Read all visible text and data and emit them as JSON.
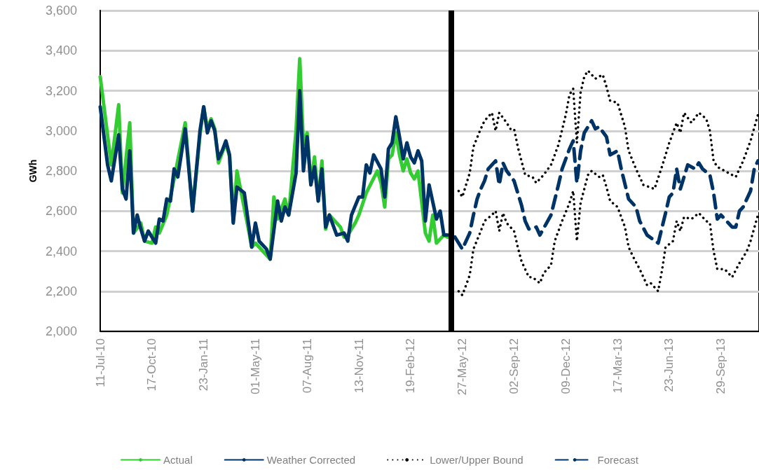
{
  "chart_data": {
    "type": "line",
    "ylabel": "GWh",
    "ylim": [
      2000,
      3600
    ],
    "yticks": [
      {
        "value": 2000,
        "label": "2,000"
      },
      {
        "value": 2200,
        "label": "2,200"
      },
      {
        "value": 2400,
        "label": "2,400"
      },
      {
        "value": 2600,
        "label": "2,600"
      },
      {
        "value": 2800,
        "label": "2,800"
      },
      {
        "value": 3000,
        "label": "3,000"
      },
      {
        "value": 3200,
        "label": "3,200"
      },
      {
        "value": 3400,
        "label": "3,400"
      },
      {
        "value": 3600,
        "label": "3,600"
      }
    ],
    "xlim": [
      "2010-07-11",
      "2013-12-10"
    ],
    "xticks": [
      {
        "value": "2010-07-11",
        "label": "11-Jul-10"
      },
      {
        "value": "2010-10-17",
        "label": "17-Oct-10"
      },
      {
        "value": "2011-01-23",
        "label": "23-Jan-11"
      },
      {
        "value": "2011-05-01",
        "label": "01-May-11"
      },
      {
        "value": "2011-08-07",
        "label": "07-Aug-11"
      },
      {
        "value": "2011-11-13",
        "label": "13-Nov-11"
      },
      {
        "value": "2012-02-19",
        "label": "19-Feb-12"
      },
      {
        "value": "2012-05-27",
        "label": "27-May-12"
      },
      {
        "value": "2012-09-02",
        "label": "02-Sep-12"
      },
      {
        "value": "2012-12-09",
        "label": "09-Dec-12"
      },
      {
        "value": "2013-03-17",
        "label": "17-Mar-13"
      },
      {
        "value": "2013-06-23",
        "label": "23-Jun-13"
      },
      {
        "value": "2013-09-29",
        "label": "29-Sep-13"
      }
    ],
    "grid": "y",
    "legend": "bottom",
    "marker": "none",
    "ref_lines": [
      {
        "axis": "x",
        "value": "2012-05-06",
        "color": "#000000"
      }
    ],
    "series": [
      {
        "name": "Actual",
        "color": "#33cc33",
        "line_style": "solid",
        "x": [
          "2010-07-11",
          "2010-08-01",
          "2010-08-15",
          "2010-08-22",
          "2010-09-05",
          "2010-09-12",
          "2010-09-26",
          "2010-10-03",
          "2010-10-17",
          "2010-10-24",
          "2010-10-31",
          "2010-11-14",
          "2010-11-28",
          "2010-12-19",
          "2011-01-02",
          "2011-01-16",
          "2011-01-23",
          "2011-01-30",
          "2011-02-06",
          "2011-02-13",
          "2011-02-20",
          "2011-03-06",
          "2011-03-13",
          "2011-03-20",
          "2011-03-27",
          "2011-04-17",
          "2011-04-24",
          "2011-05-01",
          "2011-05-15",
          "2011-05-29",
          "2011-06-05",
          "2011-06-12",
          "2011-06-26",
          "2011-07-03",
          "2011-07-17",
          "2011-07-24",
          "2011-07-31",
          "2011-08-07",
          "2011-08-14",
          "2011-08-21",
          "2011-08-28",
          "2011-09-04",
          "2011-09-11",
          "2011-09-18",
          "2011-10-09",
          "2011-10-16",
          "2011-10-23",
          "2011-11-06",
          "2011-11-13",
          "2011-11-27",
          "2011-12-18",
          "2011-12-25",
          "2012-01-01",
          "2012-01-08",
          "2012-01-15",
          "2012-01-22",
          "2012-01-29",
          "2012-02-05",
          "2012-02-12",
          "2012-02-19",
          "2012-02-26",
          "2012-03-04",
          "2012-03-18",
          "2012-03-25",
          "2012-04-01",
          "2012-04-08",
          "2012-04-22",
          "2012-04-29"
        ],
        "values": [
          3270,
          2830,
          3130,
          2690,
          3040,
          2490,
          2540,
          2450,
          2440,
          2520,
          2490,
          2580,
          2760,
          3040,
          2600,
          2980,
          3120,
          3010,
          3060,
          3010,
          2840,
          2940,
          2870,
          2550,
          2800,
          2520,
          2420,
          2440,
          2400,
          2360,
          2670,
          2560,
          2660,
          2580,
          3000,
          3360,
          2930,
          2990,
          2740,
          2870,
          2650,
          2850,
          2510,
          2580,
          2520,
          2470,
          2480,
          2540,
          2580,
          2690,
          2800,
          2740,
          2620,
          2860,
          2880,
          2990,
          2880,
          2800,
          2860,
          2790,
          2760,
          2800,
          2490,
          2450,
          2580,
          2440,
          2480,
          2470
        ]
      },
      {
        "name": "Weather Corrected",
        "color": "#003366",
        "line_style": "solid",
        "x": [
          "2010-07-11",
          "2010-07-25",
          "2010-08-01",
          "2010-08-15",
          "2010-08-22",
          "2010-08-29",
          "2010-09-05",
          "2010-09-12",
          "2010-09-19",
          "2010-09-26",
          "2010-10-03",
          "2010-10-10",
          "2010-10-24",
          "2010-10-31",
          "2010-11-07",
          "2010-11-14",
          "2010-11-21",
          "2010-11-28",
          "2010-12-05",
          "2010-12-19",
          "2011-01-02",
          "2011-01-16",
          "2011-01-23",
          "2011-01-30",
          "2011-02-06",
          "2011-02-13",
          "2011-02-20",
          "2011-02-27",
          "2011-03-06",
          "2011-03-13",
          "2011-03-20",
          "2011-03-27",
          "2011-04-10",
          "2011-04-24",
          "2011-05-01",
          "2011-05-08",
          "2011-05-22",
          "2011-05-29",
          "2011-06-12",
          "2011-06-19",
          "2011-06-26",
          "2011-07-03",
          "2011-07-17",
          "2011-07-24",
          "2011-07-31",
          "2011-08-07",
          "2011-08-14",
          "2011-08-21",
          "2011-08-28",
          "2011-09-04",
          "2011-09-11",
          "2011-09-18",
          "2011-10-02",
          "2011-10-16",
          "2011-10-23",
          "2011-10-30",
          "2011-11-13",
          "2011-11-20",
          "2011-11-27",
          "2011-12-04",
          "2011-12-11",
          "2011-12-25",
          "2012-01-01",
          "2012-01-08",
          "2012-01-15",
          "2012-01-22",
          "2012-01-29",
          "2012-02-05",
          "2012-02-12",
          "2012-02-19",
          "2012-02-26",
          "2012-03-04",
          "2012-03-11",
          "2012-03-18",
          "2012-03-25",
          "2012-04-08",
          "2012-04-15",
          "2012-04-22",
          "2012-04-29"
        ],
        "values": [
          3120,
          2830,
          2750,
          2980,
          2710,
          2660,
          2900,
          2490,
          2580,
          2510,
          2450,
          2500,
          2440,
          2560,
          2550,
          2660,
          2650,
          2810,
          2770,
          3010,
          2600,
          3000,
          3120,
          2990,
          3050,
          3000,
          2860,
          2900,
          2950,
          2880,
          2540,
          2720,
          2690,
          2420,
          2540,
          2450,
          2410,
          2360,
          2650,
          2550,
          2620,
          2580,
          2790,
          3200,
          2800,
          2970,
          2730,
          2820,
          2650,
          2810,
          2520,
          2580,
          2480,
          2490,
          2450,
          2580,
          2670,
          2670,
          2830,
          2790,
          2880,
          2810,
          2670,
          2910,
          2940,
          3070,
          2970,
          2860,
          2940,
          2870,
          2840,
          2900,
          2850,
          2550,
          2730,
          2560,
          2600,
          2480,
          2480
        ]
      },
      {
        "name": "Lower/Upper Bound",
        "color": "#000000",
        "line_style": "dotted",
        "x": [
          "2012-05-20",
          "2012-05-27",
          "2012-06-03",
          "2012-06-10",
          "2012-06-17",
          "2012-07-01",
          "2012-07-08",
          "2012-07-22",
          "2012-07-29",
          "2012-08-05",
          "2012-08-19",
          "2012-08-26",
          "2012-09-02",
          "2012-09-09",
          "2012-09-16",
          "2012-09-23",
          "2012-10-07",
          "2012-10-14",
          "2012-10-28",
          "2012-11-11",
          "2012-11-25",
          "2012-12-09",
          "2012-12-16",
          "2012-12-23",
          "2012-12-30",
          "2013-01-06",
          "2013-01-13",
          "2013-01-20",
          "2013-02-03",
          "2013-02-17",
          "2013-02-24",
          "2013-03-03",
          "2013-03-17",
          "2013-03-24",
          "2013-03-31",
          "2013-04-07",
          "2013-04-21",
          "2013-05-05",
          "2013-05-26",
          "2013-06-09",
          "2013-06-23",
          "2013-07-07",
          "2013-07-14",
          "2013-07-21",
          "2013-08-04",
          "2013-08-18",
          "2013-09-01",
          "2013-09-08",
          "2013-09-15",
          "2013-09-22",
          "2013-10-13",
          "2013-10-27",
          "2013-11-10",
          "2013-11-24",
          "2013-12-08"
        ],
        "values": [
          2700,
          2670,
          2730,
          2790,
          2920,
          3010,
          3050,
          3090,
          3000,
          3090,
          3040,
          3010,
          3010,
          2920,
          2850,
          2780,
          2770,
          2740,
          2780,
          2830,
          2930,
          3080,
          3180,
          3210,
          2940,
          3190,
          3270,
          3300,
          3260,
          3280,
          3220,
          3150,
          3140,
          3080,
          3020,
          2900,
          2810,
          2730,
          2710,
          2820,
          2940,
          3040,
          2990,
          3090,
          3040,
          3090,
          3060,
          3000,
          2850,
          2820,
          2790,
          2770,
          2850,
          2950,
          3080
        ]
      },
      {
        "color": "#000000",
        "line_style": "dotted",
        "x": [
          "2012-05-20",
          "2012-05-27",
          "2012-06-10",
          "2012-06-17",
          "2012-07-01",
          "2012-07-08",
          "2012-07-22",
          "2012-07-29",
          "2012-08-05",
          "2012-08-12",
          "2012-08-19",
          "2012-09-02",
          "2012-09-09",
          "2012-09-16",
          "2012-09-30",
          "2012-10-07",
          "2012-10-21",
          "2012-10-28",
          "2012-11-11",
          "2012-11-18",
          "2012-12-02",
          "2012-12-16",
          "2012-12-23",
          "2012-12-30",
          "2013-01-06",
          "2013-01-20",
          "2013-01-27",
          "2013-02-10",
          "2013-02-17",
          "2013-02-24",
          "2013-03-03",
          "2013-03-17",
          "2013-03-31",
          "2013-04-07",
          "2013-04-14",
          "2013-04-28",
          "2013-05-12",
          "2013-05-19",
          "2013-06-02",
          "2013-06-09",
          "2013-06-16",
          "2013-06-30",
          "2013-07-07",
          "2013-07-14",
          "2013-07-21",
          "2013-08-04",
          "2013-08-18",
          "2013-09-01",
          "2013-09-08",
          "2013-09-15",
          "2013-09-22",
          "2013-10-06",
          "2013-10-20",
          "2013-11-03",
          "2013-11-17",
          "2013-11-24",
          "2013-12-08"
        ],
        "values": [
          2200,
          2180,
          2280,
          2410,
          2500,
          2550,
          2580,
          2600,
          2500,
          2590,
          2540,
          2500,
          2420,
          2350,
          2270,
          2270,
          2240,
          2290,
          2330,
          2450,
          2550,
          2640,
          2700,
          2450,
          2640,
          2780,
          2800,
          2770,
          2780,
          2720,
          2650,
          2620,
          2520,
          2420,
          2380,
          2310,
          2230,
          2240,
          2200,
          2300,
          2420,
          2450,
          2550,
          2500,
          2570,
          2560,
          2590,
          2550,
          2540,
          2400,
          2310,
          2310,
          2270,
          2340,
          2400,
          2450,
          2580
        ]
      },
      {
        "name": "Forecast",
        "color": "#003366",
        "line_style": "dashed",
        "x": [
          "2012-05-13",
          "2012-05-27",
          "2012-06-10",
          "2012-06-17",
          "2012-06-24",
          "2012-07-01",
          "2012-07-08",
          "2012-07-15",
          "2012-07-29",
          "2012-08-05",
          "2012-08-12",
          "2012-08-19",
          "2012-09-02",
          "2012-09-16",
          "2012-09-23",
          "2012-09-30",
          "2012-10-14",
          "2012-10-21",
          "2012-11-11",
          "2012-11-25",
          "2012-12-02",
          "2012-12-16",
          "2012-12-23",
          "2012-12-30",
          "2013-01-06",
          "2013-01-13",
          "2013-01-27",
          "2013-02-03",
          "2013-02-10",
          "2013-02-24",
          "2013-03-03",
          "2013-03-17",
          "2013-03-24",
          "2013-04-07",
          "2013-04-21",
          "2013-04-28",
          "2013-05-12",
          "2013-06-02",
          "2013-06-16",
          "2013-06-23",
          "2013-06-30",
          "2013-07-07",
          "2013-07-14",
          "2013-07-28",
          "2013-08-11",
          "2013-08-18",
          "2013-08-25",
          "2013-09-08",
          "2013-09-15",
          "2013-09-22",
          "2013-09-29",
          "2013-10-20",
          "2013-10-27",
          "2013-11-03",
          "2013-11-10",
          "2013-11-24",
          "2013-12-01",
          "2013-12-08"
        ],
        "values": [
          2470,
          2410,
          2490,
          2580,
          2660,
          2710,
          2750,
          2810,
          2850,
          2730,
          2840,
          2800,
          2750,
          2630,
          2550,
          2510,
          2520,
          2480,
          2580,
          2730,
          2810,
          2910,
          2950,
          2740,
          2900,
          2990,
          3050,
          3010,
          3020,
          2970,
          2880,
          2900,
          2810,
          2660,
          2620,
          2550,
          2480,
          2440,
          2590,
          2670,
          2690,
          2810,
          2710,
          2830,
          2810,
          2840,
          2810,
          2780,
          2690,
          2560,
          2580,
          2520,
          2520,
          2600,
          2620,
          2700,
          2810,
          2850
        ]
      }
    ]
  }
}
